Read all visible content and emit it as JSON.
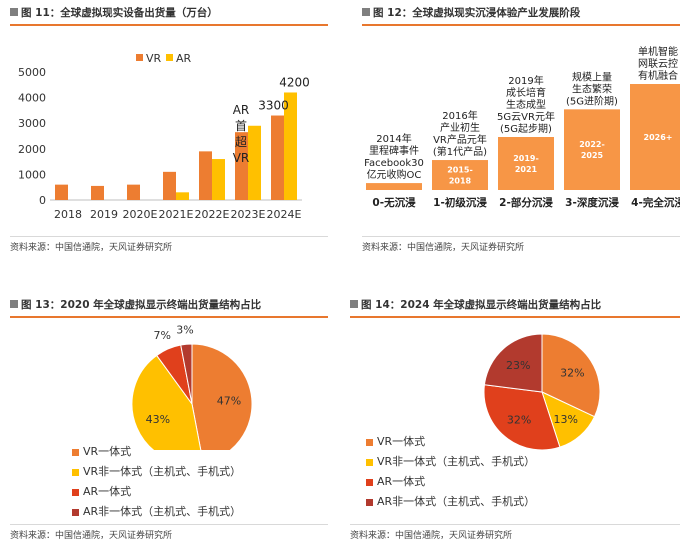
{
  "figures": [
    {
      "prefix": "图 11：",
      "title": "全球虚拟现实设备出货量（万台）",
      "source": "资料来源：中国信通院，天风证券研究所"
    },
    {
      "prefix": "图 12：",
      "title": "全球虚拟现实沉浸体验产业发展阶段",
      "source": "资料来源：中国信通院，天风证券研究所"
    },
    {
      "prefix": "图 13：",
      "title": "2020 年全球虚拟显示终端出货量结构占比",
      "source": "资料来源：中国信通院，天风证券研究所"
    },
    {
      "prefix": "图 14：",
      "title": "2024 年全球虚拟显示终端出货量结构占比",
      "source": "资料来源：中国信通院，天风证券研究所"
    }
  ],
  "colors": {
    "vr": "#ed7d31",
    "ar": "#ffc000",
    "stage_bar": "#f79646",
    "pie_vr_aio": "#ed7d31",
    "pie_vr_non": "#ffc000",
    "pie_ar_aio": "#e0401c",
    "pie_ar_non": "#b23a2e",
    "accent_rule": "#e8772e"
  },
  "chart_data": [
    {
      "type": "bar",
      "categories": [
        "2018",
        "2019",
        "2020E",
        "2021E",
        "2022E",
        "2023E",
        "2024E"
      ],
      "series": [
        {
          "name": "VR",
          "values": [
            600,
            550,
            600,
            1100,
            1900,
            2650,
            3300
          ]
        },
        {
          "name": "AR",
          "values": [
            0,
            0,
            0,
            300,
            1600,
            2900,
            4200
          ]
        }
      ],
      "yticks": [
        0,
        1000,
        2000,
        3000,
        4000,
        5000
      ],
      "ylim": [
        0,
        5000
      ],
      "legend_position": "top",
      "data_labels": [
        {
          "series": "VR",
          "category": "2024E",
          "text": "3300"
        },
        {
          "series": "AR",
          "category": "2024E",
          "text": "4200"
        }
      ],
      "annotation": {
        "category": "2023E",
        "lines": [
          "AR",
          "首",
          "超",
          "VR"
        ]
      }
    },
    {
      "type": "bar",
      "categories": [
        "0-无沉浸",
        "1-初级沉浸",
        "2-部分沉浸",
        "3-深度沉浸",
        "4-完全沉浸"
      ],
      "values": [
        0.3,
        1.3,
        2.3,
        3.5,
        4.6
      ],
      "ylim": [
        0,
        4.6
      ],
      "bar_labels": [
        "",
        "2015-\n2018",
        "2019-\n2021",
        "2022-\n2025",
        "2026+"
      ],
      "descriptions": [
        [
          "2014年",
          "里程碑事件",
          "Facebook30",
          "亿元收购OC"
        ],
        [
          "2016年",
          "产业初生",
          "VR产品元年",
          "(第1代产品)"
        ],
        [
          "2019年",
          "成长培育",
          "生态成型",
          "5G云VR元年",
          "(5G起步期)"
        ],
        [
          "规模上量",
          "生态繁荣",
          "(5G进阶期)"
        ],
        [
          "单机智能",
          "网联云控",
          "有机融合"
        ]
      ]
    },
    {
      "type": "pie",
      "labels": [
        "VR一体式",
        "VR非一体式（主机式、手机式）",
        "AR一体式",
        "AR非一体式（主机式、手机式）"
      ],
      "values": [
        47,
        43,
        7,
        3
      ],
      "value_labels": [
        "47%",
        "43%",
        "7%",
        "3%"
      ],
      "legend_position": "bottom-left"
    },
    {
      "type": "pie",
      "labels": [
        "VR一体式",
        "VR非一体式（主机式、手机式）",
        "AR一体式",
        "AR非一体式（主机式、手机式）"
      ],
      "values": [
        32,
        13,
        32,
        23
      ],
      "value_labels": [
        "32%",
        "13%",
        "32%",
        "23%"
      ],
      "legend_position": "bottom-left"
    }
  ]
}
